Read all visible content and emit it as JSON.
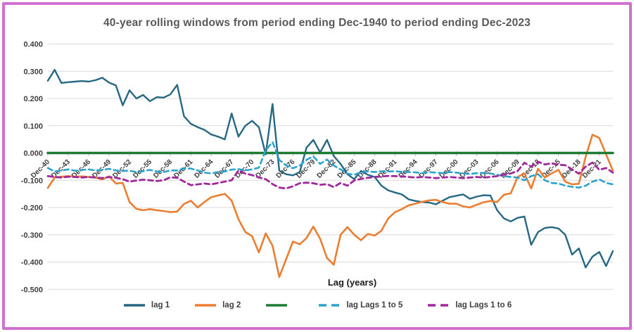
{
  "frame": {
    "border_color": "#d26fd2",
    "background": "#ffffff"
  },
  "chart_data": {
    "type": "line",
    "title": "40-year rolling windows from period ending Dec-1940 to period ending Dec-2023",
    "xlabel": "Lag (years)",
    "ylabel": "",
    "ylim": [
      -0.5,
      0.4
    ],
    "grid": "horizontal",
    "gridline_color": "#d9d9d9",
    "legend_position": "bottom",
    "start_year": 1940,
    "end_year": 2023,
    "y_ticks": [
      {
        "value": 0.4,
        "label": "0.400"
      },
      {
        "value": 0.3,
        "label": "0.300"
      },
      {
        "value": 0.2,
        "label": "0.200"
      },
      {
        "value": 0.1,
        "label": "0.100"
      },
      {
        "value": 0.0,
        "label": "0.000"
      },
      {
        "value": -0.1,
        "label": "-0.100"
      },
      {
        "value": -0.2,
        "label": "-0.200"
      },
      {
        "value": -0.3,
        "label": "-0.300"
      },
      {
        "value": -0.4,
        "label": "-0.400"
      },
      {
        "value": -0.5,
        "label": "-0.500"
      }
    ],
    "x_ticks": [
      {
        "year": 1940,
        "label": "Dec-40"
      },
      {
        "year": 1943,
        "label": "Dec-43"
      },
      {
        "year": 1946,
        "label": "Dec-46"
      },
      {
        "year": 1949,
        "label": "Dec-49"
      },
      {
        "year": 1952,
        "label": "Dec-52"
      },
      {
        "year": 1955,
        "label": "Dec-55"
      },
      {
        "year": 1958,
        "label": "Dec-58"
      },
      {
        "year": 1961,
        "label": "Dec-61"
      },
      {
        "year": 1964,
        "label": "Dec-64"
      },
      {
        "year": 1967,
        "label": "Dec-67"
      },
      {
        "year": 1970,
        "label": "Dec-70"
      },
      {
        "year": 1973,
        "label": "Dec-73"
      },
      {
        "year": 1976,
        "label": "Dec-76"
      },
      {
        "year": 1979,
        "label": "Dec-79"
      },
      {
        "year": 1982,
        "label": "Dec-82"
      },
      {
        "year": 1985,
        "label": "Dec-85"
      },
      {
        "year": 1988,
        "label": "Dec-88"
      },
      {
        "year": 1991,
        "label": "Dec-91"
      },
      {
        "year": 1994,
        "label": "Dec-94"
      },
      {
        "year": 1997,
        "label": "Dec-97"
      },
      {
        "year": 2000,
        "label": "Dec-00"
      },
      {
        "year": 2003,
        "label": "Dec-03"
      },
      {
        "year": 2006,
        "label": "Dec-06"
      },
      {
        "year": 2009,
        "label": "Dec-09"
      },
      {
        "year": 2012,
        "label": "Dec-12"
      },
      {
        "year": 2015,
        "label": "Dec-15"
      },
      {
        "year": 2018,
        "label": "Dec-18"
      },
      {
        "year": 2021,
        "label": "Dec-21"
      }
    ],
    "series": [
      {
        "name": "lag 1",
        "color": "#266884",
        "dash": null,
        "width": 2.4,
        "values": [
          0.265,
          0.305,
          0.257,
          0.26,
          0.262,
          0.264,
          0.262,
          0.267,
          0.276,
          0.258,
          0.248,
          0.175,
          0.23,
          0.2,
          0.213,
          0.19,
          0.205,
          0.203,
          0.215,
          0.25,
          0.135,
          0.107,
          0.095,
          0.085,
          0.068,
          0.06,
          0.05,
          0.145,
          0.06,
          0.1,
          0.118,
          0.095,
          -0.005,
          0.18,
          -0.065,
          -0.078,
          -0.082,
          -0.07,
          0.02,
          0.048,
          0.002,
          0.048,
          -0.011,
          -0.04,
          -0.078,
          -0.096,
          -0.066,
          -0.08,
          -0.088,
          -0.12,
          -0.137,
          -0.145,
          -0.152,
          -0.17,
          -0.176,
          -0.18,
          -0.182,
          -0.188,
          -0.175,
          -0.162,
          -0.157,
          -0.152,
          -0.168,
          -0.16,
          -0.155,
          -0.156,
          -0.21,
          -0.24,
          -0.251,
          -0.238,
          -0.233,
          -0.337,
          -0.29,
          -0.275,
          -0.272,
          -0.277,
          -0.3,
          -0.373,
          -0.35,
          -0.42,
          -0.38,
          -0.363,
          -0.415,
          -0.36
        ]
      },
      {
        "name": "lag 2",
        "color": "#ed7d31",
        "dash": null,
        "width": 2.6,
        "values": [
          -0.128,
          -0.09,
          -0.087,
          -0.085,
          -0.087,
          -0.086,
          -0.088,
          -0.09,
          -0.097,
          -0.086,
          -0.112,
          -0.11,
          -0.18,
          -0.205,
          -0.21,
          -0.206,
          -0.21,
          -0.213,
          -0.217,
          -0.215,
          -0.187,
          -0.175,
          -0.2,
          -0.18,
          -0.162,
          -0.156,
          -0.15,
          -0.175,
          -0.243,
          -0.29,
          -0.305,
          -0.365,
          -0.295,
          -0.34,
          -0.455,
          -0.39,
          -0.325,
          -0.335,
          -0.312,
          -0.27,
          -0.315,
          -0.385,
          -0.41,
          -0.3,
          -0.272,
          -0.3,
          -0.32,
          -0.297,
          -0.303,
          -0.285,
          -0.24,
          -0.217,
          -0.206,
          -0.192,
          -0.186,
          -0.179,
          -0.174,
          -0.172,
          -0.18,
          -0.186,
          -0.186,
          -0.196,
          -0.2,
          -0.19,
          -0.181,
          -0.176,
          -0.18,
          -0.153,
          -0.148,
          -0.088,
          -0.075,
          -0.13,
          -0.058,
          -0.09,
          -0.075,
          -0.062,
          -0.105,
          -0.115,
          -0.113,
          -0.014,
          0.067,
          0.055,
          -0.005,
          -0.065
        ]
      },
      {
        "name": "",
        "color": "#1e7b34",
        "dash": null,
        "width": 3.4,
        "constant": 0
      },
      {
        "name": "lag Lags 1 to 5",
        "color": "#2ba3d1",
        "dash": "7,5",
        "width": 2.6,
        "values": [
          -0.055,
          -0.068,
          -0.064,
          -0.06,
          -0.065,
          -0.062,
          -0.06,
          -0.064,
          -0.062,
          -0.058,
          -0.064,
          -0.066,
          -0.065,
          -0.07,
          -0.067,
          -0.062,
          -0.068,
          -0.07,
          -0.064,
          -0.064,
          -0.057,
          -0.057,
          -0.064,
          -0.072,
          -0.075,
          -0.07,
          -0.068,
          -0.061,
          -0.059,
          -0.064,
          -0.06,
          -0.054,
          0.01,
          0.04,
          -0.025,
          -0.046,
          -0.056,
          -0.046,
          -0.025,
          -0.012,
          -0.04,
          -0.024,
          -0.046,
          -0.06,
          -0.076,
          -0.08,
          -0.07,
          -0.068,
          -0.07,
          -0.067,
          -0.068,
          -0.067,
          -0.069,
          -0.07,
          -0.071,
          -0.074,
          -0.07,
          -0.072,
          -0.074,
          -0.07,
          -0.072,
          -0.075,
          -0.077,
          -0.074,
          -0.073,
          -0.075,
          -0.08,
          -0.085,
          -0.088,
          -0.09,
          -0.1,
          -0.085,
          -0.078,
          -0.1,
          -0.11,
          -0.112,
          -0.12,
          -0.124,
          -0.127,
          -0.12,
          -0.105,
          -0.097,
          -0.11,
          -0.115
        ]
      },
      {
        "name": "lag Lags 1 to 6",
        "color": "#a0289c",
        "dash": "7,5",
        "width": 2.8,
        "values": [
          -0.085,
          -0.088,
          -0.09,
          -0.087,
          -0.088,
          -0.09,
          -0.088,
          -0.09,
          -0.092,
          -0.088,
          -0.091,
          -0.096,
          -0.105,
          -0.101,
          -0.098,
          -0.1,
          -0.103,
          -0.1,
          -0.089,
          -0.091,
          -0.105,
          -0.118,
          -0.115,
          -0.112,
          -0.115,
          -0.11,
          -0.105,
          -0.1,
          -0.064,
          -0.076,
          -0.081,
          -0.09,
          -0.096,
          -0.114,
          -0.127,
          -0.13,
          -0.122,
          -0.111,
          -0.109,
          -0.111,
          -0.117,
          -0.114,
          -0.125,
          -0.11,
          -0.12,
          -0.101,
          -0.095,
          -0.091,
          -0.088,
          -0.086,
          -0.084,
          -0.085,
          -0.086,
          -0.088,
          -0.09,
          -0.088,
          -0.09,
          -0.092,
          -0.09,
          -0.088,
          -0.09,
          -0.092,
          -0.09,
          -0.088,
          -0.09,
          -0.088,
          -0.085,
          -0.08,
          -0.075,
          -0.066,
          -0.036,
          -0.05,
          -0.032,
          -0.042,
          -0.038,
          -0.043,
          -0.045,
          -0.06,
          -0.076,
          -0.05,
          -0.035,
          -0.062,
          -0.055,
          -0.072
        ]
      }
    ]
  }
}
